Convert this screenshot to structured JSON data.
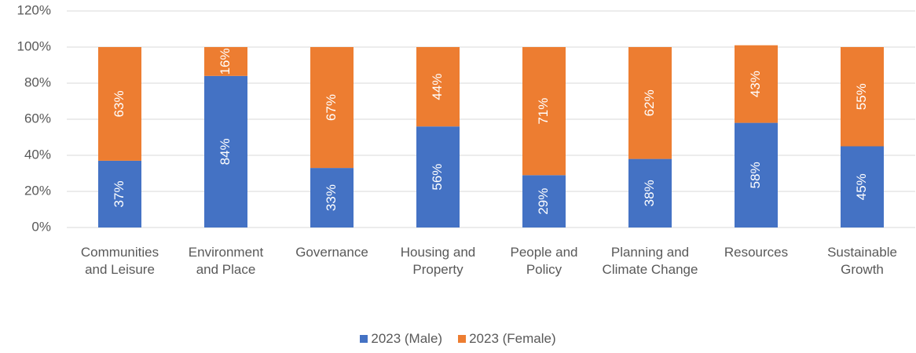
{
  "chart_data": {
    "type": "stacked_bar",
    "categories": [
      "Communities and Leisure",
      "Environment and Place",
      "Governance",
      "Housing and Property",
      "People and Policy",
      "Planning and Climate Change",
      "Resources",
      "Sustainable Growth"
    ],
    "series": [
      {
        "name": "2023 (Male)",
        "color": "#4472c4",
        "values": [
          37,
          84,
          33,
          56,
          29,
          38,
          58,
          45
        ],
        "value_labels": [
          "37%",
          "84%",
          "33%",
          "56%",
          "29%",
          "38%",
          "58%",
          "45%"
        ]
      },
      {
        "name": "2023 (Female)",
        "color": "#ed7d31",
        "values": [
          63,
          16,
          67,
          44,
          71,
          62,
          43,
          55
        ],
        "value_labels": [
          "63%",
          "16%",
          "67%",
          "44%",
          "71%",
          "62%",
          "43%",
          "55%"
        ]
      }
    ],
    "ylim": [
      0,
      120
    ],
    "yticks": [
      {
        "value": 0,
        "label": "0%"
      },
      {
        "value": 20,
        "label": "20%"
      },
      {
        "value": 40,
        "label": "40%"
      },
      {
        "value": 60,
        "label": "60%"
      },
      {
        "value": 80,
        "label": "80%"
      },
      {
        "value": 100,
        "label": "100%"
      },
      {
        "value": 120,
        "label": "120%"
      }
    ],
    "grid": true
  }
}
